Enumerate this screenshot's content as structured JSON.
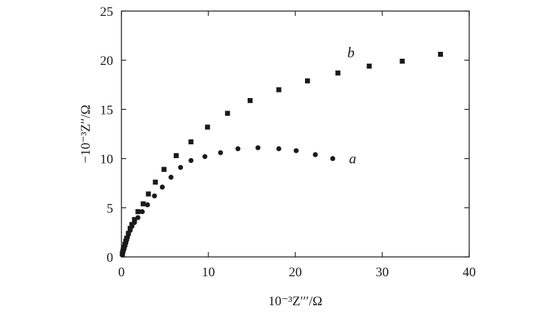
{
  "chart_data": {
    "type": "scatter",
    "xlabel": "10⁻³Z′′′/Ω",
    "ylabel": "−10⁻³Z′′/Ω",
    "xlim": [
      0,
      40
    ],
    "ylim": [
      0,
      25
    ],
    "xticks": [
      0,
      10,
      20,
      30,
      40
    ],
    "yticks": [
      0,
      5,
      10,
      15,
      20,
      25
    ],
    "grid": false,
    "legend": "none",
    "series": [
      {
        "name": "a",
        "marker": "circle",
        "color": "#1a1a1a",
        "x": [
          0.1,
          0.15,
          0.2,
          0.3,
          0.4,
          0.5,
          0.6,
          0.7,
          0.8,
          1.0,
          1.2,
          1.5,
          1.9,
          2.4,
          3.0,
          3.8,
          4.7,
          5.7,
          6.8,
          8.0,
          9.6,
          11.4,
          13.4,
          15.7,
          18.1,
          20.1,
          22.3,
          24.3
        ],
        "y": [
          0.2,
          0.4,
          0.6,
          0.8,
          1.1,
          1.4,
          1.7,
          2.0,
          2.3,
          2.7,
          3.1,
          3.5,
          4.0,
          4.6,
          5.3,
          6.2,
          7.1,
          8.1,
          9.1,
          9.8,
          10.2,
          10.6,
          11.0,
          11.1,
          11.0,
          10.8,
          10.4,
          10.0
        ]
      },
      {
        "name": "b",
        "marker": "square",
        "color": "#1a1a1a",
        "x": [
          0.1,
          0.15,
          0.2,
          0.3,
          0.4,
          0.5,
          0.6,
          0.8,
          1.0,
          1.2,
          1.5,
          1.9,
          2.5,
          3.1,
          3.9,
          4.9,
          6.3,
          8.0,
          9.9,
          12.2,
          14.8,
          18.1,
          21.4,
          24.9,
          28.5,
          32.3,
          36.7
        ],
        "y": [
          0.3,
          0.5,
          0.7,
          1.0,
          1.3,
          1.6,
          1.9,
          2.4,
          2.9,
          3.3,
          3.8,
          4.6,
          5.4,
          6.4,
          7.6,
          8.9,
          10.3,
          11.7,
          13.2,
          14.6,
          15.9,
          17.0,
          17.9,
          18.7,
          19.4,
          19.9,
          20.6
        ]
      }
    ],
    "series_labels": [
      {
        "text": "a",
        "x": 26.6,
        "y": 10.0
      },
      {
        "text": "b",
        "x": 26.4,
        "y": 20.8
      }
    ]
  }
}
